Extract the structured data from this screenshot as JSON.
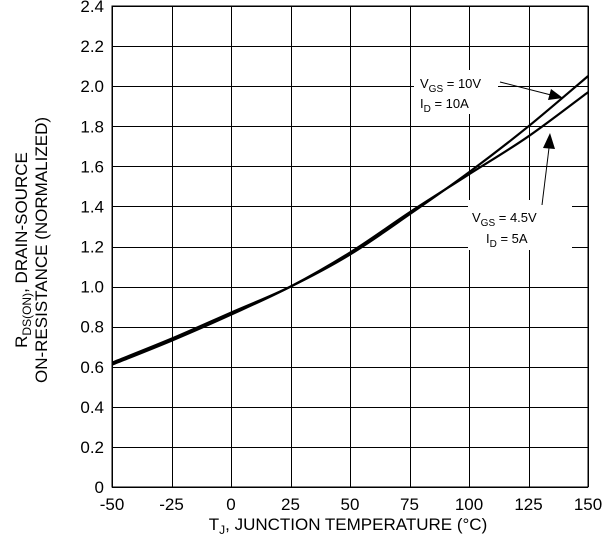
{
  "chart_data": {
    "type": "line",
    "xlabel": {
      "prefix": "T",
      "sub": "J",
      "rest": ", JUNCTION TEMPERATURE (°C)"
    },
    "ylabel": {
      "line1_pre": "R",
      "line1_sub": "DS(ON)",
      "line1_post": ", DRAIN-SOURCE",
      "line2": "ON-RESISTANCE (NORMALIZED)"
    },
    "xlim": [
      -50,
      150
    ],
    "ylim": [
      0,
      2.4
    ],
    "x_ticks": [
      -50,
      -25,
      0,
      25,
      50,
      75,
      100,
      125,
      150
    ],
    "x_tick_labels": [
      "-50",
      "-25",
      "0",
      "25",
      "50",
      "75",
      "100",
      "125",
      "150"
    ],
    "y_ticks": [
      0,
      0.2,
      0.4,
      0.6,
      0.8,
      1.0,
      1.2,
      1.4,
      1.6,
      1.8,
      2.0,
      2.2,
      2.4
    ],
    "y_tick_labels": [
      "0",
      "0.2",
      "0.4",
      "0.6",
      "0.8",
      "1.0",
      "1.2",
      "1.4",
      "1.6",
      "1.8",
      "2.0",
      "2.2",
      "2.4"
    ],
    "grid": true,
    "series": [
      {
        "annotation": {
          "l1_pre": "V",
          "l1_sub": "GS",
          "l1_post": " = 10V",
          "l2_pre": "I",
          "l2_sub": "D",
          "l2_post": " = 10A"
        },
        "x": [
          -50,
          -25,
          0,
          25,
          50,
          75,
          100,
          125,
          150
        ],
        "y": [
          0.62,
          0.74,
          0.87,
          1.0,
          1.16,
          1.36,
          1.57,
          1.8,
          2.05
        ]
      },
      {
        "annotation": {
          "l1_pre": "V",
          "l1_sub": "GS",
          "l1_post": " = 4.5V",
          "l2_pre": "I",
          "l2_sub": "D",
          "l2_post": " = 5A"
        },
        "x": [
          -50,
          -25,
          0,
          25,
          50,
          75,
          100,
          125,
          150
        ],
        "y": [
          0.61,
          0.73,
          0.86,
          1.0,
          1.17,
          1.37,
          1.56,
          1.75,
          1.97
        ]
      }
    ]
  }
}
